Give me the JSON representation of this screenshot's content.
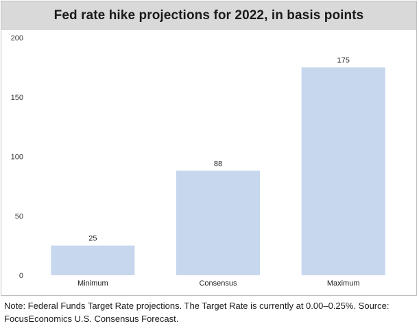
{
  "chart_data": {
    "type": "bar",
    "title": "Fed rate hike projections for 2022, in basis points",
    "categories": [
      "Minimum",
      "Consensus",
      "Maximum"
    ],
    "values": [
      25,
      88,
      175
    ],
    "ylim": [
      0,
      200
    ],
    "yticks": [
      0,
      50,
      100,
      150,
      200
    ],
    "xlabel": "",
    "ylabel": "",
    "bar_color": "#c6d7ee",
    "grid": false,
    "legend": "none"
  },
  "note": "Note: Federal Funds Target Rate projections. The Target Rate is currently at 0.00–0.25%. Source: FocusEconomics U.S. Consensus Forecast."
}
